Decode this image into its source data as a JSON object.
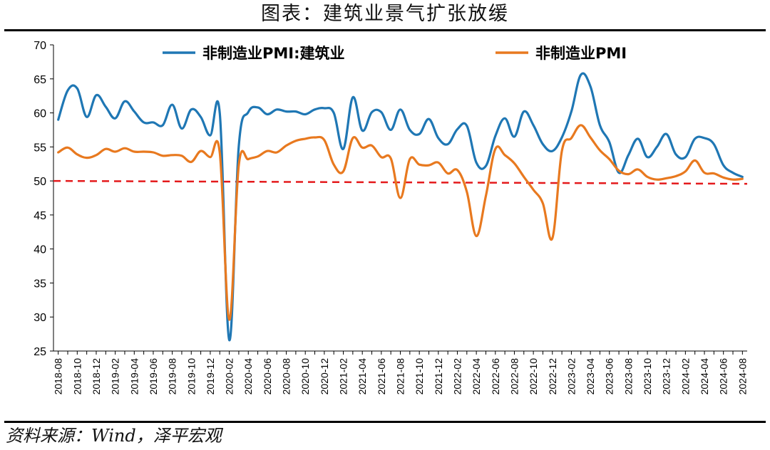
{
  "title": "图表：建筑业景气扩张放缓",
  "source": "资料来源：Wind，泽平宏观",
  "colors": {
    "construction": "#1f77b4",
    "manufacturing": "#e8791f",
    "threshold": "#e41a1c",
    "axis": "#000000"
  },
  "chart_data": {
    "type": "line",
    "ylim": [
      25,
      70
    ],
    "yticks": [
      25,
      30,
      35,
      40,
      45,
      50,
      55,
      60,
      65,
      70
    ],
    "x_tick_labels": [
      "2018-08",
      "2018-10",
      "2018-12",
      "2019-02",
      "2019-04",
      "2019-06",
      "2019-08",
      "2019-10",
      "2019-12",
      "2020-02",
      "2020-04",
      "2020-06",
      "2020-08",
      "2020-10",
      "2020-12",
      "2021-02",
      "2021-04",
      "2021-06",
      "2021-08",
      "2021-10",
      "2021-12",
      "2022-02",
      "2022-04",
      "2022-06",
      "2022-08",
      "2022-10",
      "2022-12",
      "2023-02",
      "2023-04",
      "2023-06",
      "2023-08",
      "2023-10",
      "2023-12",
      "2024-02",
      "2024-04",
      "2024-06",
      "2024-08"
    ],
    "x": [
      "2018-08",
      "2018-09",
      "2018-10",
      "2018-11",
      "2018-12",
      "2019-01",
      "2019-02",
      "2019-03",
      "2019-04",
      "2019-05",
      "2019-06",
      "2019-07",
      "2019-08",
      "2019-09",
      "2019-10",
      "2019-11",
      "2019-12",
      "2020-01",
      "2020-02",
      "2020-03",
      "2020-04",
      "2020-05",
      "2020-06",
      "2020-07",
      "2020-08",
      "2020-09",
      "2020-10",
      "2020-11",
      "2020-12",
      "2021-01",
      "2021-02",
      "2021-03",
      "2021-04",
      "2021-05",
      "2021-06",
      "2021-07",
      "2021-08",
      "2021-09",
      "2021-10",
      "2021-11",
      "2021-12",
      "2022-01",
      "2022-02",
      "2022-03",
      "2022-04",
      "2022-05",
      "2022-06",
      "2022-07",
      "2022-08",
      "2022-09",
      "2022-10",
      "2022-11",
      "2022-12",
      "2023-01",
      "2023-02",
      "2023-03",
      "2023-04",
      "2023-05",
      "2023-06",
      "2023-07",
      "2023-08",
      "2023-09",
      "2023-10",
      "2023-11",
      "2023-12",
      "2024-01",
      "2024-02",
      "2024-03",
      "2024-04",
      "2024-05",
      "2024-06",
      "2024-07",
      "2024-08"
    ],
    "series": [
      {
        "name": "非制造业PMI:建筑业",
        "color": "#1f77b4",
        "values": [
          59.0,
          63.3,
          63.6,
          59.4,
          62.6,
          60.9,
          59.2,
          61.7,
          60.2,
          58.6,
          58.6,
          58.2,
          61.2,
          57.7,
          60.5,
          59.4,
          56.7,
          59.9,
          26.6,
          55.1,
          60.1,
          60.8,
          59.8,
          60.5,
          60.2,
          60.2,
          59.8,
          60.5,
          60.7,
          60.0,
          54.7,
          62.3,
          57.4,
          60.1,
          60.1,
          57.5,
          60.5,
          57.5,
          56.9,
          59.1,
          56.3,
          55.4,
          57.6,
          58.1,
          52.7,
          52.2,
          56.6,
          59.2,
          56.5,
          60.2,
          58.2,
          55.4,
          54.4,
          56.4,
          60.2,
          65.6,
          63.9,
          58.2,
          55.7,
          51.2,
          53.8,
          56.2,
          53.5,
          55.0,
          56.9,
          53.9,
          53.5,
          56.2,
          56.3,
          55.4,
          52.3,
          51.2,
          50.6
        ]
      },
      {
        "name": "非制造业PMI",
        "color": "#e8791f",
        "values": [
          54.2,
          54.9,
          53.9,
          53.4,
          53.8,
          54.7,
          54.3,
          54.8,
          54.3,
          54.3,
          54.2,
          53.7,
          53.8,
          53.7,
          52.8,
          54.4,
          53.5,
          54.1,
          29.6,
          52.3,
          53.2,
          53.6,
          54.4,
          54.2,
          55.2,
          55.9,
          56.2,
          56.4,
          56.0,
          52.4,
          51.4,
          56.3,
          54.9,
          55.2,
          53.5,
          53.3,
          47.5,
          53.2,
          52.4,
          52.3,
          52.7,
          51.1,
          51.6,
          48.4,
          41.9,
          47.8,
          54.7,
          53.8,
          52.6,
          50.6,
          48.7,
          46.7,
          41.6,
          54.4,
          56.3,
          58.2,
          56.4,
          54.5,
          53.2,
          51.5,
          51.0,
          51.7,
          50.6,
          50.2,
          50.4,
          50.7,
          51.4,
          53.0,
          51.2,
          51.1,
          50.5,
          50.2,
          50.3
        ]
      }
    ],
    "reference_line": {
      "y": 50,
      "style": "dashed",
      "color": "#e41a1c"
    },
    "legend_placement": "top",
    "grid": false
  }
}
